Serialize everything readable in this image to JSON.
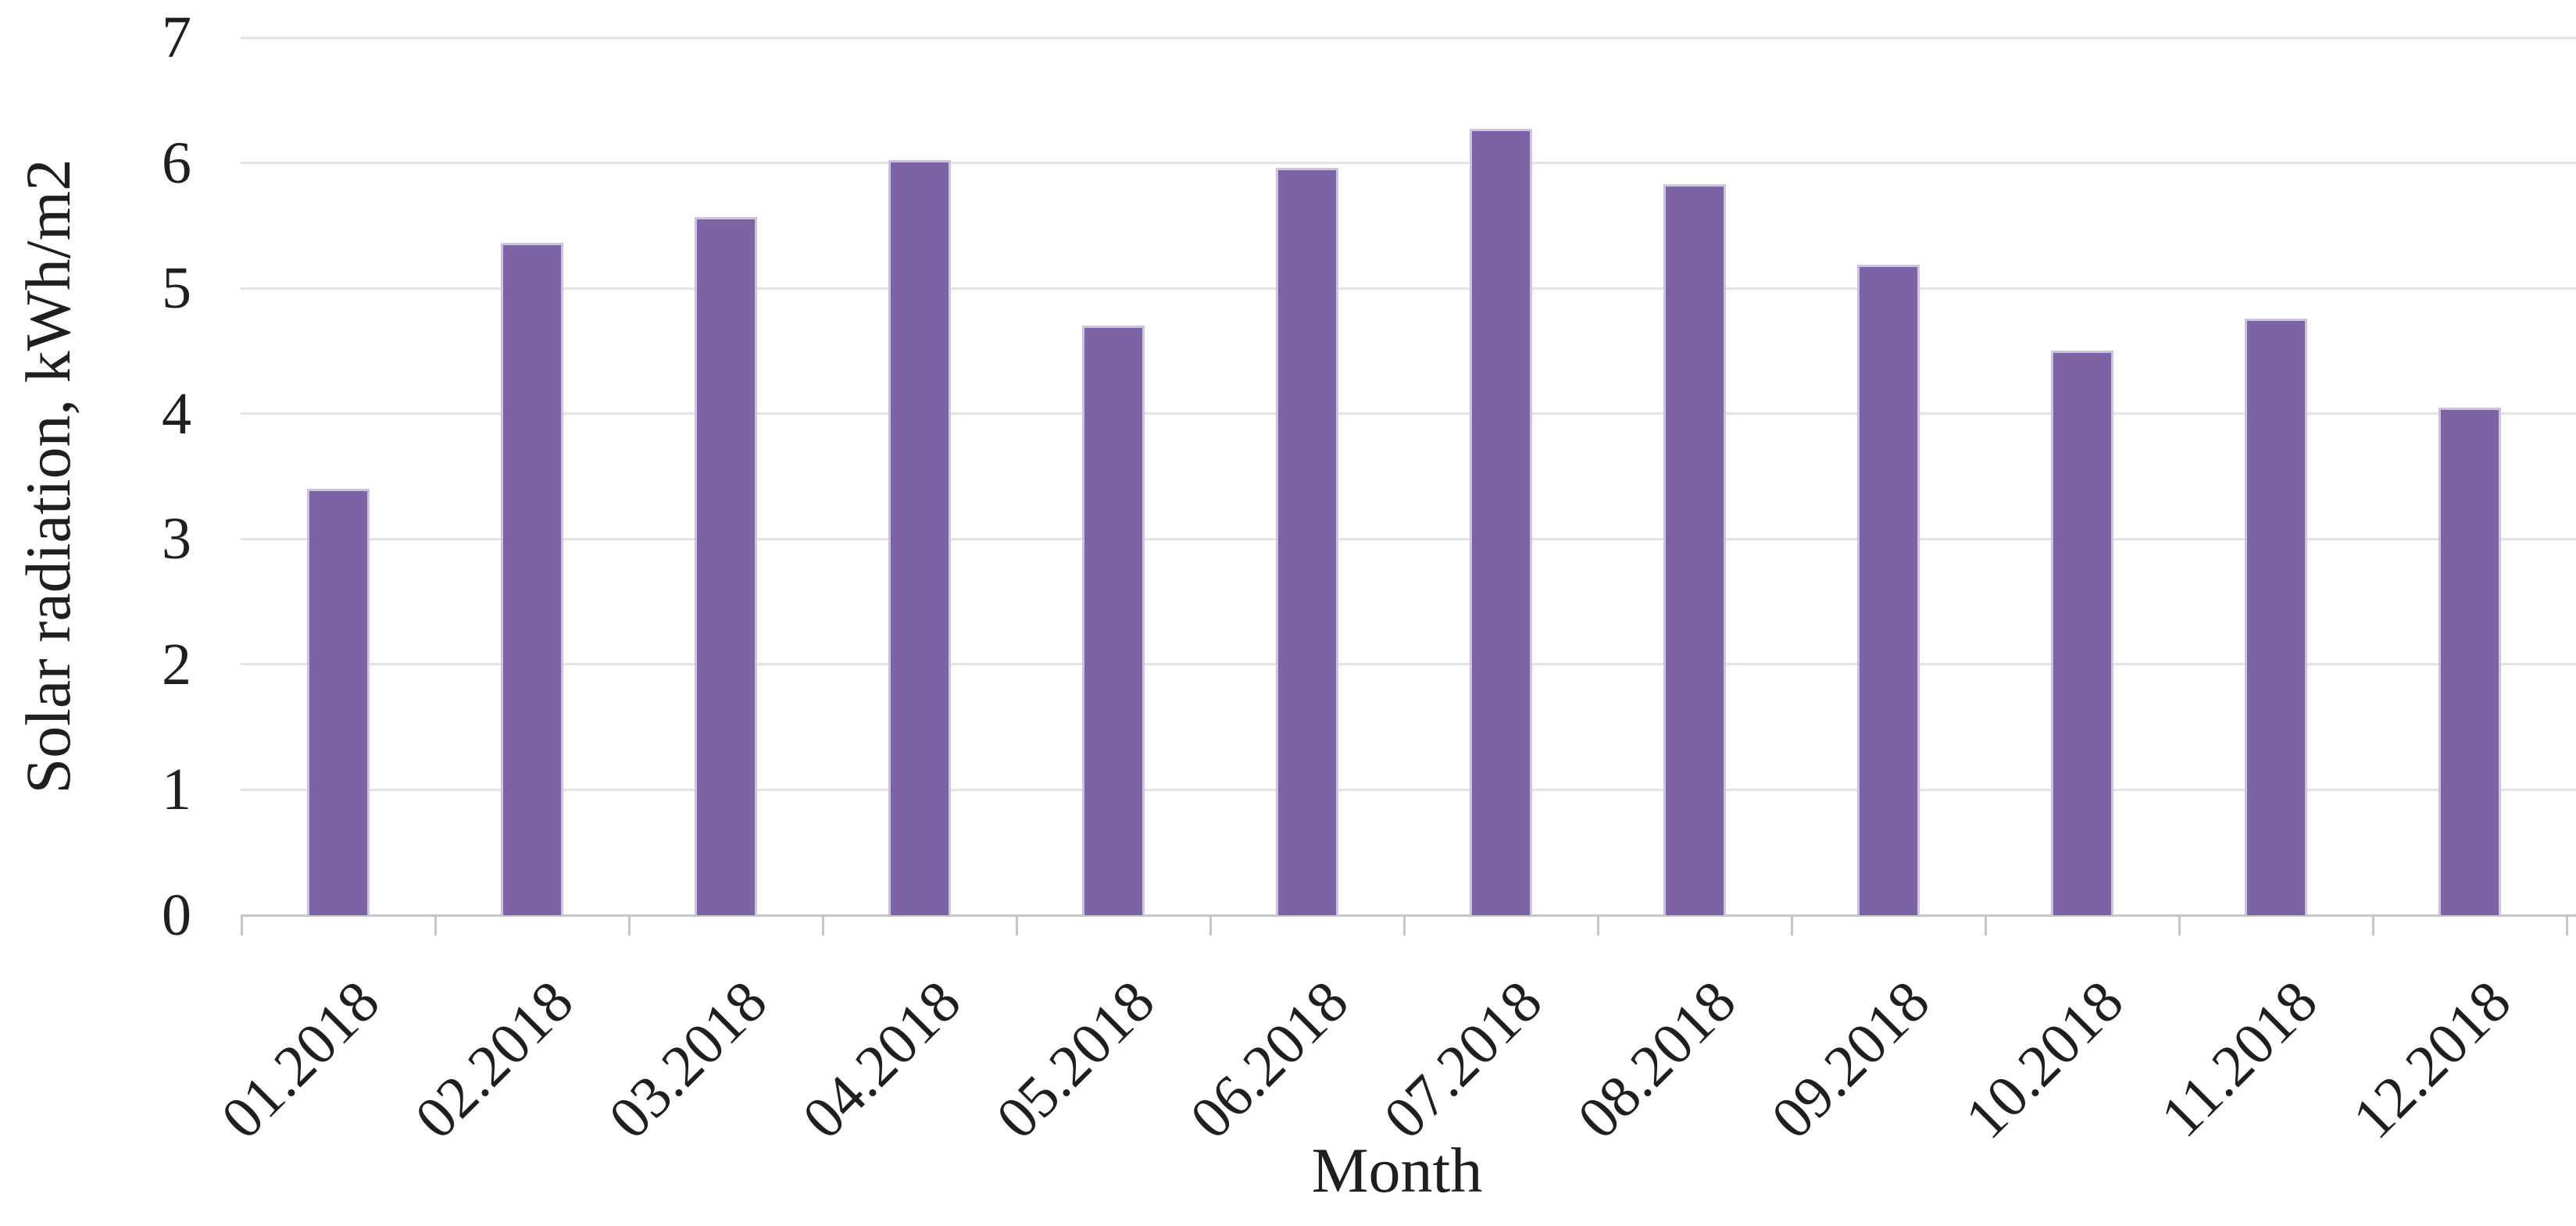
{
  "figure": {
    "background_color": "#ffffff",
    "text_color": "#1f1f1f"
  },
  "chart_data": {
    "type": "bar",
    "title": "",
    "categories": [
      "01.2018",
      "02.2018",
      "03.2018",
      "04.2018",
      "05.2018",
      "06.2018",
      "07.2018",
      "08.2018",
      "09.2018",
      "10.2018",
      "11.2018",
      "12.2018"
    ],
    "values": [
      3.4,
      5.36,
      5.57,
      6.02,
      4.7,
      5.96,
      6.27,
      5.83,
      5.19,
      4.5,
      4.76,
      4.05
    ],
    "xlabel": "Month",
    "ylabel": "Solar radiation, kWh/m2",
    "ylim": [
      0,
      7
    ],
    "yticks": [
      0,
      1,
      2,
      3,
      4,
      5,
      6,
      7
    ],
    "grid": "horizontal",
    "legend": "none",
    "bar_color": "#7C63A5",
    "bar_border_color": "#CDC3E0",
    "gridline_color": "#E3E3E3",
    "axis_line_color": "#C6C6C6",
    "tick_mark_color": "#C6C6C6",
    "x_tick_rotation_deg": -45
  }
}
